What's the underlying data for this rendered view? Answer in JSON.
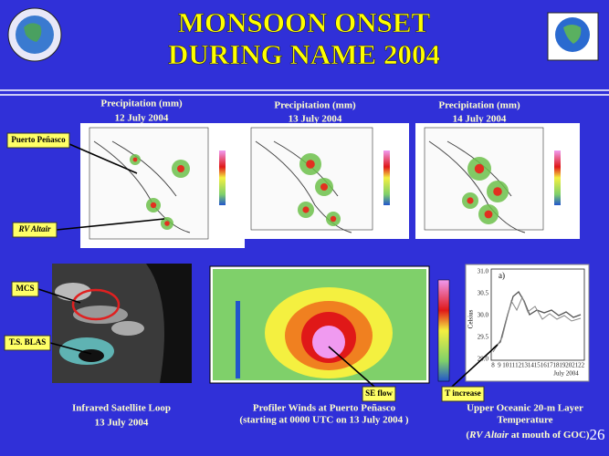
{
  "header": {
    "title_line1": "MONSOON ONSET",
    "title_line2": "DURING NAME 2004"
  },
  "maps": [
    {
      "title": "Precipitation (mm)",
      "date": "12 July 2004"
    },
    {
      "title": "Precipitation (mm)",
      "date": "13 July 2004"
    },
    {
      "title": "Precipitation (mm)",
      "date": "14 July 2004"
    }
  ],
  "callouts": {
    "puerto": "Puerto Peñasco",
    "altair": "RV Altair",
    "mcs": "MCS",
    "blas": "T.S. BLAS",
    "se_flow": "SE flow",
    "t_increase": "T increase"
  },
  "panels": {
    "satellite": {
      "caption": "Infrared Satellite Loop",
      "date": "13 July 2004"
    },
    "profiler": {
      "caption": "Profiler Winds at Puerto Peñasco",
      "note": "(starting at 0000 UTC on 13 July 2004 )"
    },
    "temperature": {
      "caption_line1": "Upper  Oceanic 20-m Layer",
      "caption_line2": "Temperature",
      "note": [
        "(",
        "RV Altair",
        " at mouth of GOC)"
      ],
      "panel_label": "a)",
      "y_label": "Celsius",
      "y_ticks": [
        "31.0",
        "30.5",
        "30.0",
        "29.5",
        "29.0"
      ],
      "x_ticks": [
        "8",
        "9",
        "10",
        "11",
        "12",
        "13",
        "14",
        "15",
        "16",
        "17",
        "18",
        "19",
        "20",
        "21",
        "22"
      ],
      "x_caption": "July 2004"
    }
  },
  "page_number": "26"
}
